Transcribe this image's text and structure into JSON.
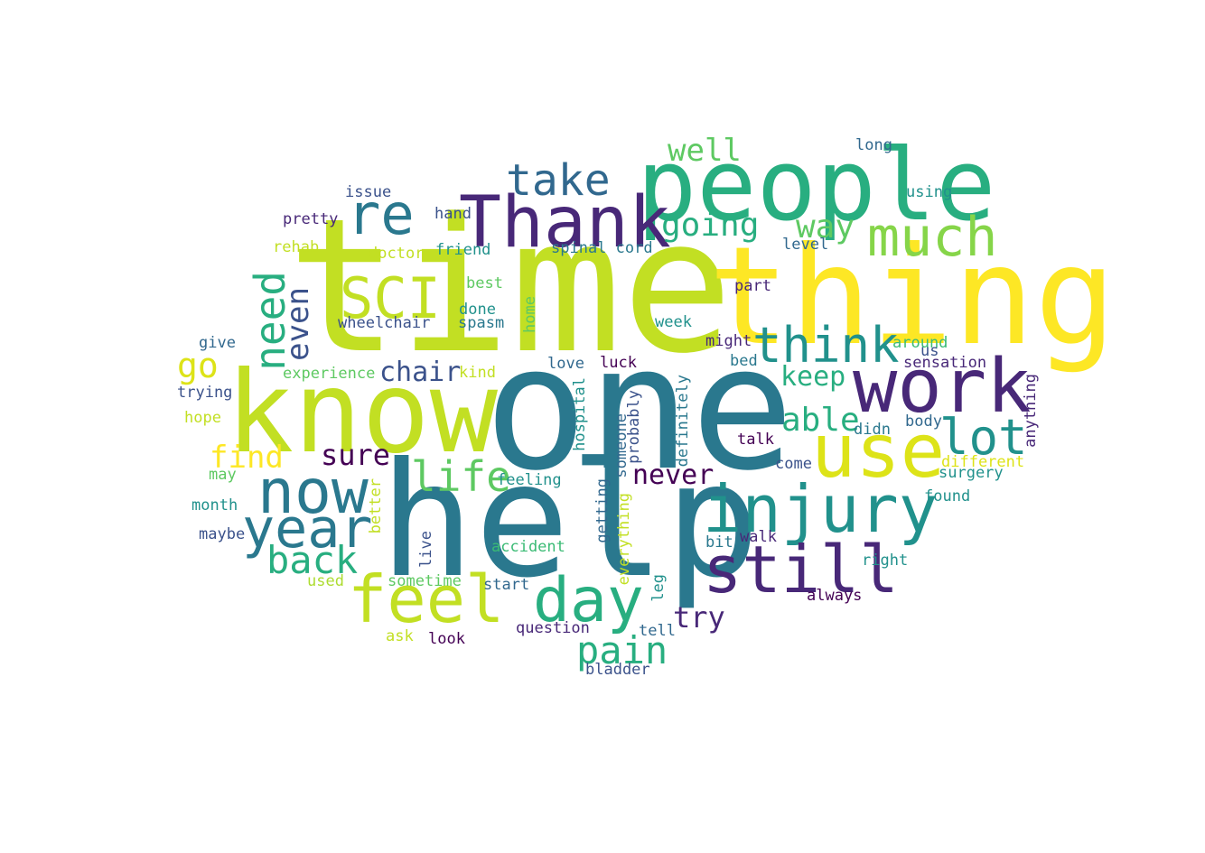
{
  "palette": {
    "yellow": "#fde725",
    "lime": "#c2df23",
    "yellowgreen": "#addc30",
    "green": "#5ec962",
    "lightgreen": "#86d549",
    "teal": "#2a788e",
    "tealgreen": "#21918c",
    "seagreen": "#28ae80",
    "emerald": "#3bbb75",
    "navy": "#3b528b",
    "purple": "#482878",
    "darkpurple": "#440154",
    "slate": "#31688e"
  },
  "words": {
    "time": "time",
    "one": "one",
    "help": "help",
    "know": "know",
    "thing": "thing",
    "people": "people",
    "Thank": "Thank",
    "work": "work",
    "use": "use",
    "injury": "injury",
    "still": "still",
    "feel": "feel",
    "day": "day",
    "now": "now",
    "year": "year",
    "SCI": "SCI",
    "re": "re",
    "much": "much",
    "lot": "lot",
    "think": "think",
    "take": "take",
    "need": "need",
    "life": "life",
    "back": "back",
    "pain": "pain",
    "even": "even",
    "able": "able",
    "go": "go",
    "way": "way",
    "going": "going",
    "find": "find",
    "well": "well",
    "sure": "sure",
    "chair": "chair",
    "keep": "keep",
    "never": "never",
    "try": "try",
    "long": "long",
    "using": "using",
    "issue": "issue",
    "pretty": "pretty",
    "hand": "hand",
    "rehab": "rehab",
    "doctor": "doctor",
    "friend": "friend",
    "spinal_cord": "spinal cord",
    "level": "level",
    "best": "best",
    "part": "part",
    "done": "done",
    "wheelchair": "wheelchair",
    "spasm": "spasm",
    "home": "home",
    "week": "week",
    "might": "might",
    "around": "around",
    "give": "give",
    "us": "us",
    "experience": "experience",
    "kind": "kind",
    "love": "love",
    "luck": "luck",
    "bed": "bed",
    "sensation": "sensation",
    "trying": "trying",
    "hospital": "hospital",
    "definitely": "definitely",
    "anything": "anything",
    "hope": "hope",
    "didn": "didn",
    "body": "body",
    "probably": "probably",
    "someone": "someone",
    "talk": "talk",
    "different": "different",
    "may": "may",
    "feeling": "feeling",
    "come": "come",
    "surgery": "surgery",
    "month": "month",
    "better": "better",
    "getting": "getting",
    "found": "found",
    "maybe": "maybe",
    "bit": "bit",
    "walk": "walk",
    "everything": "everything",
    "accident": "accident",
    "live": "live",
    "right": "right",
    "sometime": "sometime",
    "used": "used",
    "start": "start",
    "leg": "leg",
    "always": "always",
    "question": "question",
    "tell": "tell",
    "ask": "ask",
    "look": "look",
    "bladder": "bladder"
  }
}
